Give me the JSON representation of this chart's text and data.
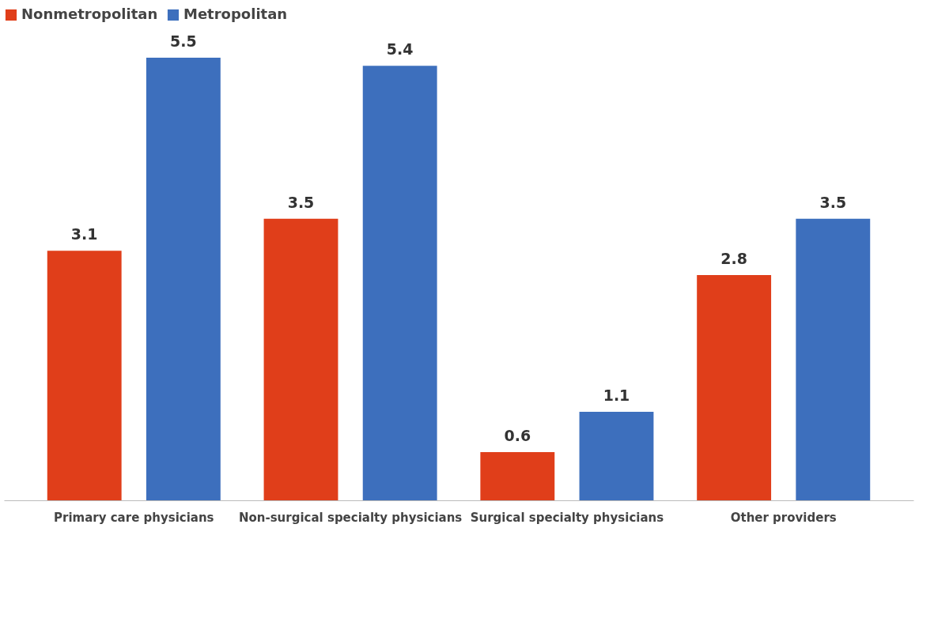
{
  "chart_data": {
    "type": "bar",
    "categories": [
      "Primary care physicians",
      "Non-surgical specialty physicians",
      "Surgical specialty physicians",
      "Other providers"
    ],
    "series": [
      {
        "name": "Nonmetropolitan",
        "color": "#e03e1a",
        "values": [
          3.1,
          3.5,
          0.6,
          2.8
        ]
      },
      {
        "name": "Metropolitan",
        "color": "#3d6fbd",
        "values": [
          5.5,
          5.4,
          1.1,
          3.5
        ]
      }
    ],
    "data_labels": true,
    "legend": "top",
    "grid": false
  }
}
